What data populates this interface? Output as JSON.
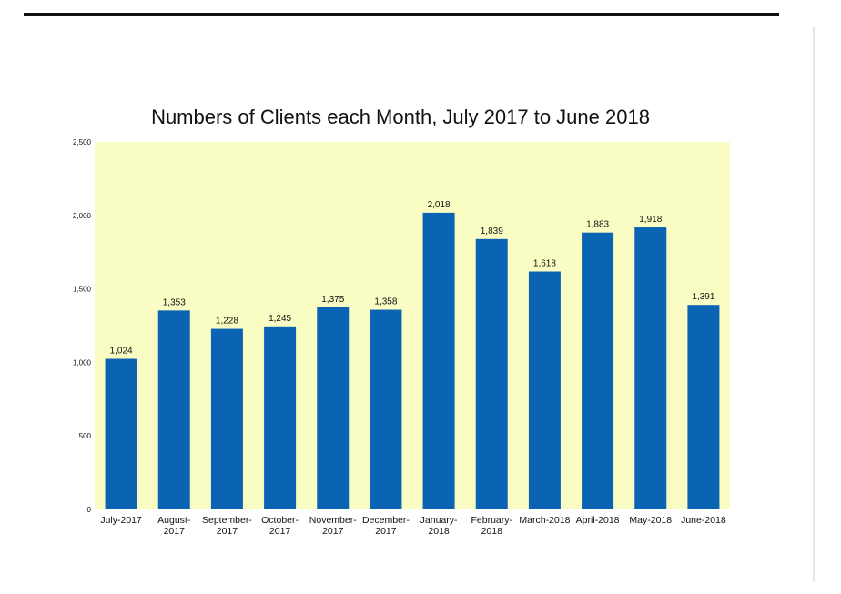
{
  "chart_data": {
    "type": "bar",
    "title": "Numbers of Clients each Month, July 2017 to June 2018",
    "xlabel": "",
    "ylabel": "",
    "ylim": [
      0,
      2500
    ],
    "y_ticks": [
      0,
      500,
      1000,
      1500,
      2000,
      2500
    ],
    "y_tick_labels": [
      "0",
      "500",
      "1,000",
      "1,500",
      "2,000",
      "2,500"
    ],
    "categories": [
      [
        "July-2017"
      ],
      [
        "August-",
        "2017"
      ],
      [
        "September-",
        "2017"
      ],
      [
        "October-",
        "2017"
      ],
      [
        "November-",
        "2017"
      ],
      [
        "December-",
        "2017"
      ],
      [
        "January-",
        "2018"
      ],
      [
        "February-",
        "2018"
      ],
      [
        "March-2018"
      ],
      [
        "April-2018"
      ],
      [
        "May-2018"
      ],
      [
        "June-2018"
      ]
    ],
    "values": [
      1024,
      1353,
      1228,
      1245,
      1375,
      1358,
      2018,
      1839,
      1618,
      1883,
      1918,
      1391
    ],
    "value_labels": [
      "1,024",
      "1,353",
      "1,228",
      "1,245",
      "1,375",
      "1,358",
      "2,018",
      "1,839",
      "1,618",
      "1,883",
      "1,918",
      "1,391"
    ],
    "colors": {
      "bar": "#0a63b3",
      "plot_background": "#f9fcc3",
      "text": "#111111"
    },
    "grid": false,
    "legend": "none"
  }
}
